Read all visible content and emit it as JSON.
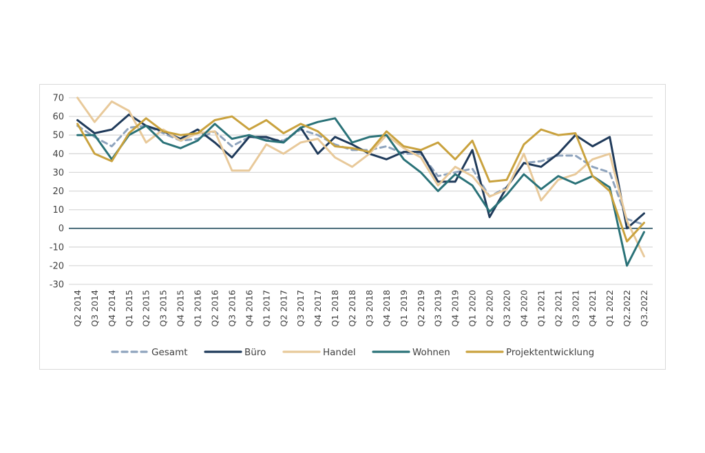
{
  "chart_data": {
    "type": "line",
    "title": "",
    "xlabel": "",
    "ylabel": "",
    "ylim": [
      -30,
      70
    ],
    "yticks": [
      70,
      60,
      50,
      40,
      30,
      20,
      10,
      0,
      -10,
      -20,
      -30
    ],
    "grid": true,
    "legend_position": "bottom",
    "categories": [
      "Q2 2014",
      "Q3 2014",
      "Q4 2014",
      "Q1 2015",
      "Q2 2015",
      "Q3 2015",
      "Q4 2015",
      "Q1 2016",
      "Q2 2016",
      "Q3 2016",
      "Q4 2016",
      "Q1 2017",
      "Q2 2017",
      "Q3 2017",
      "Q4 2017",
      "Q1 2018",
      "Q2 2018",
      "Q3 2018",
      "Q4 2018",
      "Q1 2019",
      "Q2 2019",
      "Q3 2019",
      "Q4 2019",
      "Q1 2020",
      "Q2 2020",
      "Q3 2020",
      "Q4 2020",
      "Q1 2021",
      "Q2 2021",
      "Q3 2021",
      "Q4 2021",
      "Q1 2022",
      "Q2.2022",
      "Q3.2022"
    ],
    "series": [
      {
        "name": "Gesamt",
        "color": "#8ea3bd",
        "dash": true,
        "values": [
          55,
          49,
          44,
          54,
          55,
          51,
          47,
          48,
          52,
          44,
          49,
          48,
          47,
          53,
          50,
          45,
          42,
          42,
          44,
          40,
          40,
          28,
          30,
          32,
          17,
          22,
          35,
          36,
          39,
          39,
          33,
          30,
          5,
          2
        ]
      },
      {
        "name": "Büro",
        "color": "#1f3a5a",
        "dash": false,
        "values": [
          58,
          51,
          53,
          61,
          55,
          52,
          48,
          53,
          46,
          38,
          49,
          49,
          46,
          54,
          40,
          49,
          45,
          40,
          37,
          41,
          41,
          25,
          25,
          42,
          6,
          22,
          35,
          33,
          40,
          50,
          44,
          49,
          0,
          8
        ]
      },
      {
        "name": "Handel",
        "color": "#e8c99a",
        "dash": false,
        "values": [
          70,
          57,
          68,
          63,
          46,
          53,
          47,
          51,
          52,
          31,
          31,
          45,
          40,
          46,
          48,
          38,
          33,
          40,
          50,
          43,
          38,
          23,
          33,
          28,
          17,
          21,
          40,
          15,
          26,
          29,
          37,
          40,
          4,
          -15
        ]
      },
      {
        "name": "Wohnen",
        "color": "#2a7278",
        "dash": false,
        "values": [
          50,
          50,
          37,
          50,
          55,
          46,
          43,
          47,
          56,
          48,
          50,
          47,
          46,
          54,
          57,
          59,
          46,
          49,
          50,
          37,
          30,
          20,
          29,
          23,
          9,
          18,
          29,
          21,
          28,
          24,
          28,
          22,
          -20,
          -2
        ]
      },
      {
        "name": "Projektentwicklung",
        "color": "#c9a23e",
        "dash": false,
        "values": [
          56,
          40,
          36,
          51,
          59,
          52,
          50,
          51,
          58,
          60,
          53,
          58,
          51,
          56,
          52,
          44,
          43,
          41,
          52,
          44,
          42,
          46,
          37,
          47,
          25,
          26,
          45,
          53,
          50,
          51,
          28,
          20,
          -7,
          3
        ]
      }
    ]
  }
}
